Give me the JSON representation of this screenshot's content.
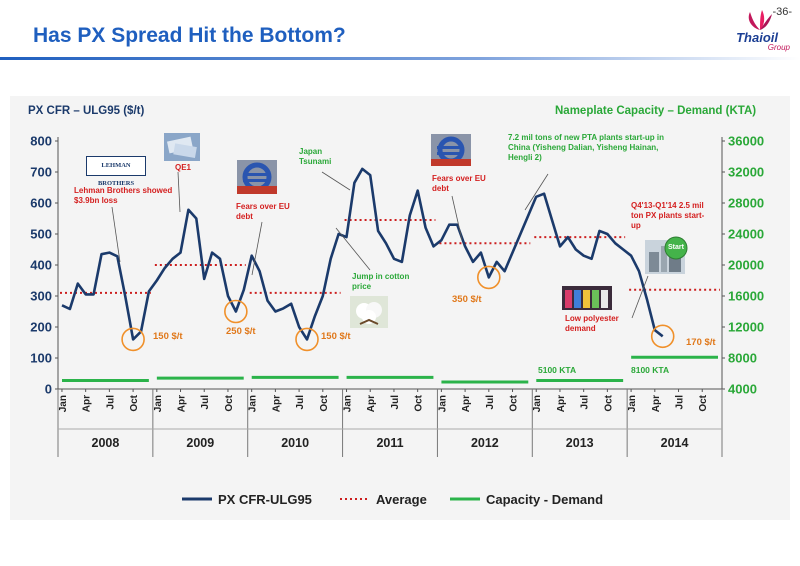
{
  "page_number": "-36-",
  "slide_title": "Has PX Spread Hit the Bottom?",
  "logo": {
    "name": "Thaioil",
    "sub": "Group"
  },
  "colors": {
    "px": "#1b3a6b",
    "average": "#cc1f1f",
    "capacity": "#2bb34a",
    "left_axis": "#1b3a6b",
    "right_axis": "#2aa838",
    "title": "#1f5fbf"
  },
  "chart_data": {
    "type": "line",
    "ylabel_left": "PX CFR – ULG95 ($/t)",
    "ylabel_right": "Nameplate Capacity – Demand (KTA)",
    "ylim_left": [
      0,
      800
    ],
    "ylim_right": [
      4000,
      36000
    ],
    "yticks_left": [
      "0",
      "100",
      "200",
      "300",
      "400",
      "500",
      "600",
      "700",
      "800"
    ],
    "yticks_right": [
      "4000",
      "8000",
      "12000",
      "16000",
      "20000",
      "24000",
      "28000",
      "32000",
      "36000"
    ],
    "month_ticks": [
      "Jan",
      "Apr",
      "Jul",
      "Oct"
    ],
    "years": [
      "2008",
      "2009",
      "2010",
      "2011",
      "2012",
      "2013",
      "2014"
    ],
    "grid": false,
    "legend_position": "bottom",
    "series": [
      {
        "name": "PX CFR-ULG95",
        "style": "line",
        "x": [
          "2008-01",
          "2008-02",
          "2008-03",
          "2008-04",
          "2008-05",
          "2008-06",
          "2008-07",
          "2008-08",
          "2008-09",
          "2008-10",
          "2008-11",
          "2008-12",
          "2009-01",
          "2009-02",
          "2009-03",
          "2009-04",
          "2009-05",
          "2009-06",
          "2009-07",
          "2009-08",
          "2009-09",
          "2009-10",
          "2009-11",
          "2009-12",
          "2010-01",
          "2010-02",
          "2010-03",
          "2010-04",
          "2010-05",
          "2010-06",
          "2010-07",
          "2010-08",
          "2010-09",
          "2010-10",
          "2010-11",
          "2010-12",
          "2011-01",
          "2011-02",
          "2011-03",
          "2011-04",
          "2011-05",
          "2011-06",
          "2011-07",
          "2011-08",
          "2011-09",
          "2011-10",
          "2011-11",
          "2011-12",
          "2012-01",
          "2012-02",
          "2012-03",
          "2012-04",
          "2012-05",
          "2012-06",
          "2012-07",
          "2012-08",
          "2012-09",
          "2012-10",
          "2012-11",
          "2012-12",
          "2013-01",
          "2013-02",
          "2013-03",
          "2013-04",
          "2013-05",
          "2013-06",
          "2013-07",
          "2013-08",
          "2013-09",
          "2013-10",
          "2013-11",
          "2013-12",
          "2014-01",
          "2014-02",
          "2014-03",
          "2014-04",
          "2014-05"
        ],
        "values": [
          270,
          258,
          340,
          305,
          305,
          435,
          440,
          428,
          300,
          160,
          185,
          315,
          350,
          390,
          420,
          440,
          578,
          550,
          355,
          440,
          420,
          300,
          250,
          320,
          430,
          380,
          285,
          250,
          260,
          275,
          200,
          160,
          235,
          300,
          420,
          500,
          490,
          665,
          710,
          690,
          510,
          470,
          420,
          410,
          560,
          640,
          520,
          460,
          480,
          530,
          530,
          460,
          410,
          440,
          360,
          410,
          380,
          440,
          500,
          560,
          620,
          630,
          545,
          460,
          490,
          450,
          430,
          420,
          510,
          500,
          470,
          450,
          430,
          380,
          290,
          190,
          170
        ]
      },
      {
        "name": "Average",
        "style": "dotted",
        "segments": [
          {
            "year": "2008",
            "value": 310
          },
          {
            "year": "2009",
            "value": 400
          },
          {
            "year": "2010",
            "value": 310
          },
          {
            "year": "2011",
            "value": 545
          },
          {
            "year": "2012",
            "value": 470
          },
          {
            "year": "2013",
            "value": 490
          },
          {
            "year": "2014",
            "value": 320
          }
        ]
      },
      {
        "name": "Capacity - Demand",
        "style": "solid",
        "axis": "right",
        "segments": [
          {
            "year": "2008",
            "value": 5100
          },
          {
            "year": "2009",
            "value": 5400
          },
          {
            "year": "2010",
            "value": 5500
          },
          {
            "year": "2011",
            "value": 5500
          },
          {
            "year": "2012",
            "value": 4900
          },
          {
            "year": "2013",
            "value": 5100
          },
          {
            "year": "2014",
            "value": 8100
          }
        ]
      }
    ],
    "annotations": {
      "lehman": "Lehman Brothers showed $3.9bn loss",
      "lehman_logo": "LEHMAN BROTHERS",
      "qe1": "QE1",
      "eu_debt_2010": "Fears over EU debt",
      "tsunami": "Japan Tsunami",
      "cotton": "Jump in cotton price",
      "eu_debt_2012": "Fears over EU debt",
      "pta": "7.2 mil tons of new PTA plants start-up in China (Yisheng Dalian, Yisheng Hainan, Hengli 2)",
      "px_plants": "Q4'13-Q1'14 2.5 mil ton PX plants start-up",
      "start_badge": "Start",
      "polyester": "Low polyester demand",
      "cap_5100": "5100 KTA",
      "cap_8100": "8100 KTA",
      "spread_2008": "150 $/t",
      "spread_2009": "250 $/t",
      "spread_2010": "150 $/t",
      "spread_2012": "350 $/t",
      "spread_2014": "170 $/t"
    }
  }
}
